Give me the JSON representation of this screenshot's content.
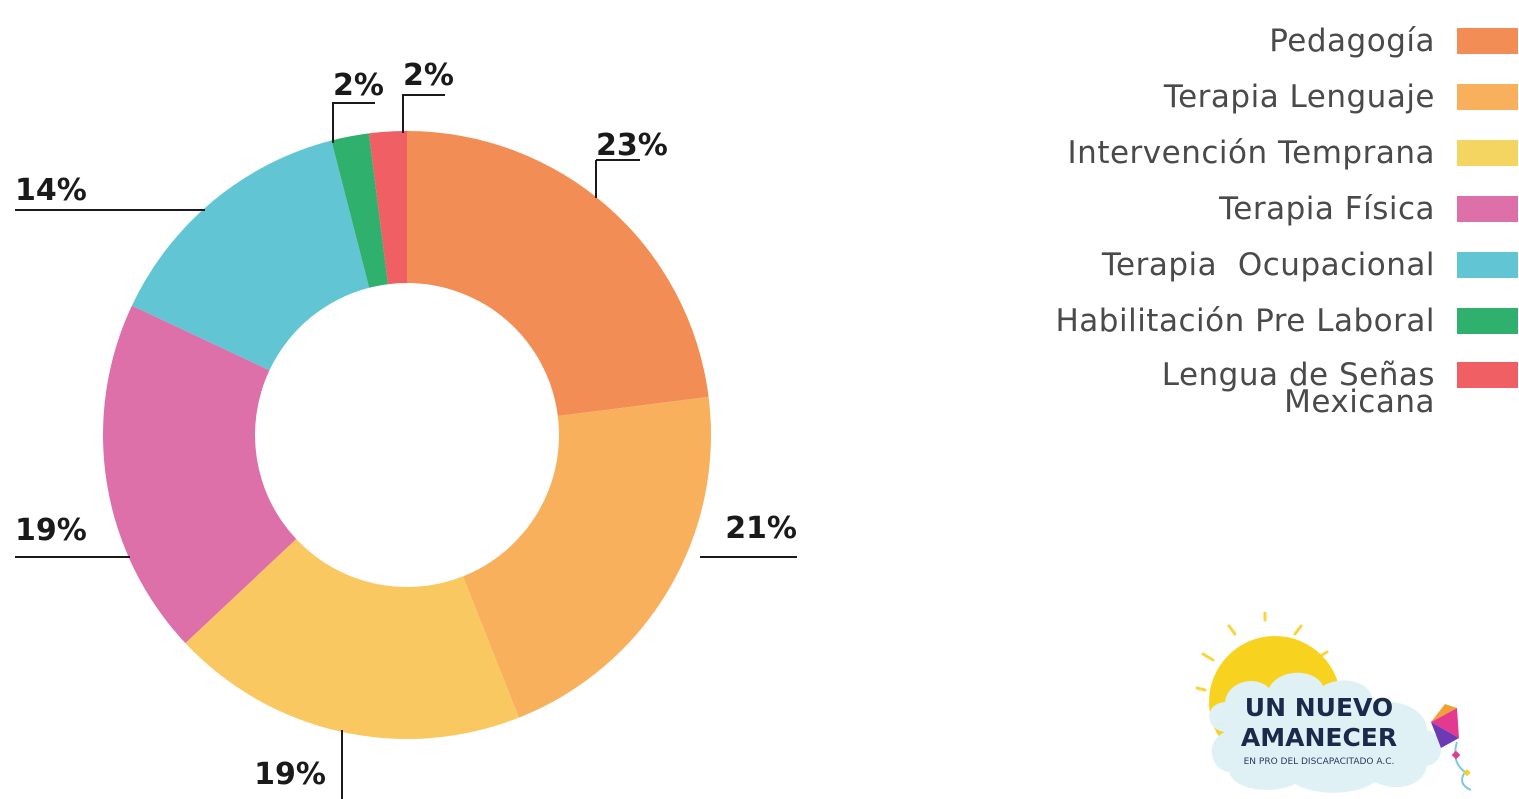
{
  "chart_data": {
    "type": "donut",
    "title": "",
    "series": [
      {
        "name": "Pedagogía",
        "value": 23,
        "label": "23%",
        "color": "#f28e55"
      },
      {
        "name": "Terapia Lenguaje",
        "value": 21,
        "label": "21%",
        "color": "#f8b05c"
      },
      {
        "name": "Intervención Temprana",
        "value": 19,
        "label": "19%",
        "color": "#fac860"
      },
      {
        "name": "Terapia Física",
        "value": 19,
        "label": "19%",
        "color": "#dd6fa9"
      },
      {
        "name": "Terapia  Ocupacional",
        "value": 14,
        "label": "14%",
        "color": "#62c5d4"
      },
      {
        "name": "Habilitación Pre Laboral",
        "value": 2,
        "label": "2%",
        "color": "#2fb06c"
      },
      {
        "name": "Lengua de Señas\nMexicana",
        "value": 2,
        "label": "2%",
        "color": "#ef5f64"
      }
    ],
    "legend_position": "top-right"
  },
  "legend": {
    "items": [
      {
        "label": "Pedagogía",
        "color": "#f28e55"
      },
      {
        "label": "Terapia Lenguaje",
        "color": "#f8b05c"
      },
      {
        "label": "Intervención Temprana",
        "color": "#f5d561"
      },
      {
        "label": "Terapia Física",
        "color": "#dd6fa9"
      },
      {
        "label": "Terapia  Ocupacional",
        "color": "#62c5d4"
      },
      {
        "label": "Habilitación Pre Laboral",
        "color": "#2fb06c"
      },
      {
        "label": "Lengua de Señas\nMexicana",
        "color": "#ef5f64"
      }
    ]
  },
  "logo": {
    "line1": "UN NUEVO",
    "line2": "AMANECER",
    "line3": "EN PRO DEL DISCAPACITADO A.C."
  }
}
